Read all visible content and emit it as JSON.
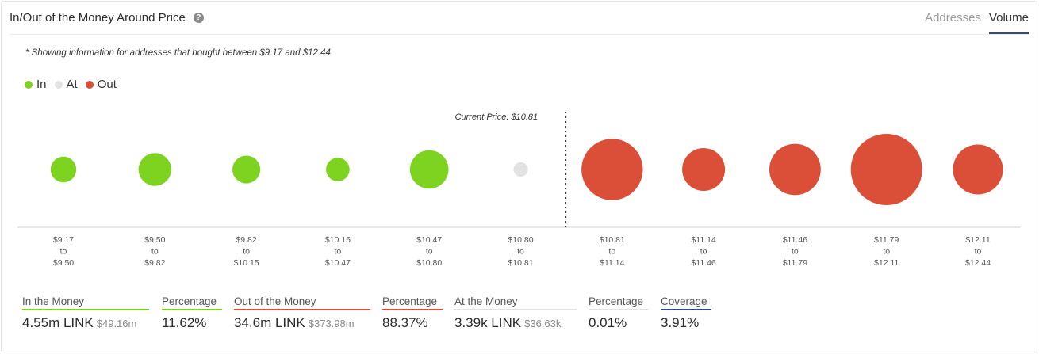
{
  "header": {
    "title": "In/Out of the Money Around Price",
    "help_icon": "question-circle-icon",
    "tabs": [
      {
        "label": "Addresses",
        "active": false
      },
      {
        "label": "Volume",
        "active": true
      }
    ]
  },
  "note": "* Showing information for addresses that bought between $9.17 and $12.44",
  "legend": [
    {
      "label": "In",
      "color": "#7ed321"
    },
    {
      "label": "At",
      "color": "#e2e2e2"
    },
    {
      "label": "Out",
      "color": "#db4e38"
    }
  ],
  "colors": {
    "in": "#7ed321",
    "at": "#e2e2e2",
    "out": "#db4e38",
    "coverage": "#34478a",
    "neutral": "#cccccc"
  },
  "chart_data": {
    "type": "scatter",
    "current_price_label": "Current Price: $10.81",
    "current_price_after_index": 5,
    "bubbles": [
      {
        "from": "$9.17",
        "to": "$9.50",
        "status": "in",
        "size": 0.36
      },
      {
        "from": "$9.50",
        "to": "$9.82",
        "status": "in",
        "size": 0.46
      },
      {
        "from": "$9.82",
        "to": "$10.15",
        "status": "in",
        "size": 0.39
      },
      {
        "from": "$10.15",
        "to": "$10.47",
        "status": "in",
        "size": 0.33
      },
      {
        "from": "$10.47",
        "to": "$10.80",
        "status": "in",
        "size": 0.54
      },
      {
        "from": "$10.80",
        "to": "$10.81",
        "status": "at",
        "size": 0.2
      },
      {
        "from": "$10.81",
        "to": "$11.14",
        "status": "out",
        "size": 0.86
      },
      {
        "from": "$11.14",
        "to": "$11.46",
        "status": "out",
        "size": 0.6
      },
      {
        "from": "$11.46",
        "to": "$11.79",
        "status": "out",
        "size": 0.72
      },
      {
        "from": "$11.79",
        "to": "$12.11",
        "status": "out",
        "size": 1.0
      },
      {
        "from": "$12.11",
        "to": "$12.44",
        "status": "out",
        "size": 0.7
      }
    ],
    "range_word": "to"
  },
  "stats": {
    "in_money": {
      "label": "In the Money",
      "value": "4.55m LINK",
      "sub": "$49.16m"
    },
    "in_pct": {
      "label": "Percentage",
      "value": "11.62%"
    },
    "out_money": {
      "label": "Out of the Money",
      "value": "34.6m LINK",
      "sub": "$373.98m"
    },
    "out_pct": {
      "label": "Percentage",
      "value": "88.37%"
    },
    "at_money": {
      "label": "At the Money",
      "value": "3.39k LINK",
      "sub": "$36.63k"
    },
    "at_pct": {
      "label": "Percentage",
      "value": "0.01%"
    },
    "coverage": {
      "label": "Coverage",
      "value": "3.91%"
    }
  }
}
